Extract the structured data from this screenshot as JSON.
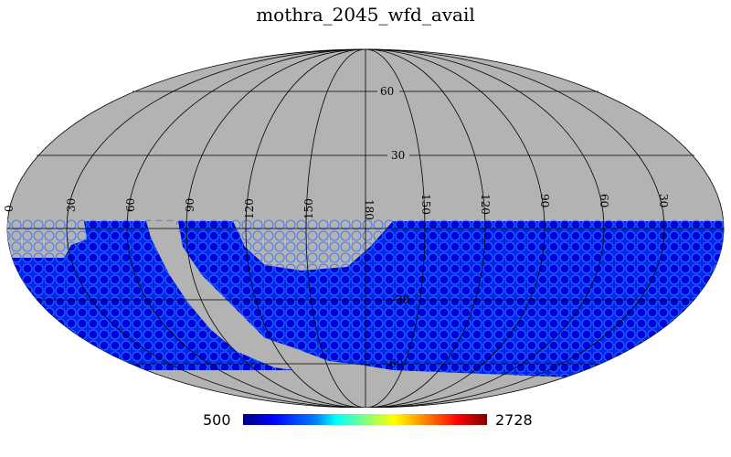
{
  "title": "mothra_2045_wfd_avail",
  "colorbar": {
    "min_label": "500",
    "max_label": "2728"
  },
  "meridian_labels": [
    "0",
    "30",
    "60",
    "90",
    "120",
    "150",
    "180",
    "150",
    "120",
    "90",
    "60",
    "30"
  ],
  "parallel_labels": [
    "60",
    "30",
    "-30",
    "-60"
  ],
  "colors": {
    "background_sky": "#b3b3b3",
    "low": "#0000cc",
    "mid": "#0055ff",
    "graticule": "#000000"
  }
}
